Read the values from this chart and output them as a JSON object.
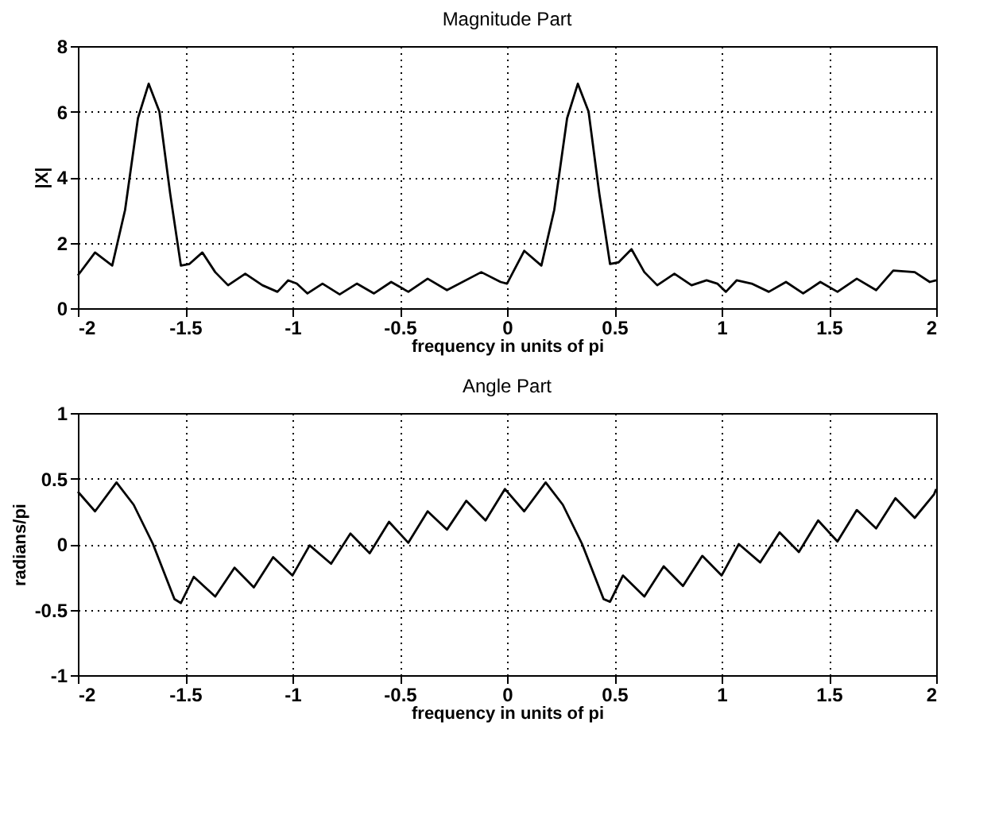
{
  "chart_data": [
    {
      "type": "line",
      "title": "Magnitude Part",
      "xlabel": "frequency in units of pi",
      "ylabel": "|X|",
      "x": [
        -2,
        -1.92,
        -1.84,
        -1.78,
        -1.72,
        -1.67,
        -1.62,
        -1.57,
        -1.52,
        -1.48,
        -1.42,
        -1.36,
        -1.3,
        -1.22,
        -1.14,
        -1.07,
        -1.02,
        -0.98,
        -0.93,
        -0.86,
        -0.78,
        -0.7,
        -0.62,
        -0.54,
        -0.46,
        -0.37,
        -0.28,
        -0.12,
        -0.03,
        0,
        0.08,
        0.16,
        0.22,
        0.28,
        0.33,
        0.38,
        0.43,
        0.48,
        0.52,
        0.58,
        0.64,
        0.7,
        0.78,
        0.86,
        0.93,
        0.98,
        1.02,
        1.07,
        1.14,
        1.22,
        1.3,
        1.38,
        1.46,
        1.54,
        1.63,
        1.72,
        1.8,
        1.9,
        1.97,
        2
      ],
      "series": [
        {
          "color": "#000000",
          "values": [
            1.0,
            1.7,
            1.3,
            3.0,
            5.8,
            6.85,
            6.0,
            3.5,
            1.3,
            1.35,
            1.7,
            1.1,
            0.7,
            1.05,
            0.7,
            0.5,
            0.85,
            0.75,
            0.45,
            0.75,
            0.42,
            0.75,
            0.45,
            0.8,
            0.5,
            0.9,
            0.55,
            1.1,
            0.8,
            0.75,
            1.75,
            1.3,
            3.0,
            5.8,
            6.85,
            6.0,
            3.5,
            1.35,
            1.4,
            1.8,
            1.1,
            0.7,
            1.05,
            0.7,
            0.85,
            0.75,
            0.5,
            0.85,
            0.75,
            0.5,
            0.8,
            0.45,
            0.8,
            0.5,
            0.9,
            0.55,
            1.15,
            1.1,
            0.8,
            0.85
          ]
        }
      ],
      "xlim": [
        -2,
        2
      ],
      "xticks": [
        -2,
        -1.5,
        -1,
        -0.5,
        0,
        0.5,
        1,
        1.5,
        2
      ],
      "ylim": [
        0,
        8
      ],
      "yticks": [
        0,
        2,
        4,
        6,
        8
      ],
      "grid": true,
      "marker": "none",
      "line_style": "solid"
    },
    {
      "type": "line",
      "title": "Angle Part",
      "xlabel": "frequency in units of pi",
      "ylabel": "radians/pi",
      "x": [
        -2,
        -1.92,
        -1.82,
        -1.74,
        -1.65,
        -1.55,
        -1.52,
        -1.46,
        -1.36,
        -1.27,
        -1.18,
        -1.09,
        -1.0,
        -0.92,
        -0.82,
        -0.73,
        -0.64,
        -0.55,
        -0.46,
        -0.37,
        -0.28,
        -0.19,
        -0.1,
        -0.01,
        0.08,
        0.18,
        0.26,
        0.35,
        0.45,
        0.48,
        0.54,
        0.64,
        0.73,
        0.82,
        0.91,
        1.0,
        1.08,
        1.18,
        1.27,
        1.36,
        1.45,
        1.54,
        1.63,
        1.72,
        1.81,
        1.9,
        1.99,
        2
      ],
      "series": [
        {
          "color": "#000000",
          "values": [
            0.4,
            0.25,
            0.47,
            0.3,
            0.0,
            -0.42,
            -0.45,
            -0.25,
            -0.4,
            -0.18,
            -0.33,
            -0.1,
            -0.24,
            -0.01,
            -0.15,
            0.08,
            -0.07,
            0.17,
            0.01,
            0.25,
            0.11,
            0.33,
            0.18,
            0.42,
            0.25,
            0.47,
            0.3,
            0.0,
            -0.42,
            -0.44,
            -0.24,
            -0.4,
            -0.17,
            -0.32,
            -0.09,
            -0.24,
            0.0,
            -0.14,
            0.09,
            -0.06,
            0.18,
            0.02,
            0.26,
            0.12,
            0.35,
            0.2,
            0.38,
            0.42
          ]
        }
      ],
      "xlim": [
        -2,
        2
      ],
      "xticks": [
        -2,
        -1.5,
        -1,
        -0.5,
        0,
        0.5,
        1,
        1.5,
        2
      ],
      "ylim": [
        -1,
        1
      ],
      "yticks": [
        -1,
        -0.5,
        0,
        0.5,
        1
      ],
      "grid": true,
      "marker": "none",
      "line_style": "solid"
    }
  ]
}
